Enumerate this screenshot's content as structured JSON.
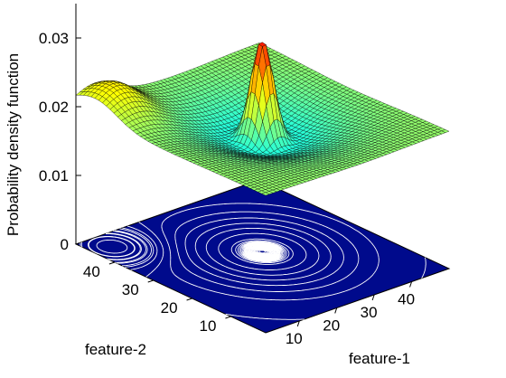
{
  "chart_data": {
    "type": "surface",
    "title": "",
    "zlabel": "Probability density function",
    "xlabel": "feature-1",
    "ylabel": "feature-2",
    "xticks": [
      10,
      20,
      30,
      40
    ],
    "yticks": [
      10,
      20,
      30,
      40
    ],
    "zticks": [
      "0",
      "0.01",
      "0.02",
      "0.03"
    ],
    "xlim": [
      1,
      50
    ],
    "ylim": [
      1,
      50
    ],
    "zlim": [
      0,
      0.035
    ],
    "base_level": 0.02,
    "colormap": "jet",
    "contour_floor_color": "#000a8c",
    "contour_line_color": "#ffffff",
    "components": [
      {
        "mean_x": 27,
        "mean_y": 27,
        "sigma": 2.2,
        "peak": 0.0154
      },
      {
        "mean_x": 27,
        "mean_y": 27,
        "sigma": 11,
        "peak": -0.0045
      },
      {
        "mean_x": 6,
        "mean_y": 45,
        "sigma": 5.5,
        "peak": 0.0039
      }
    ],
    "grid_resolution": 50,
    "grid": true
  }
}
